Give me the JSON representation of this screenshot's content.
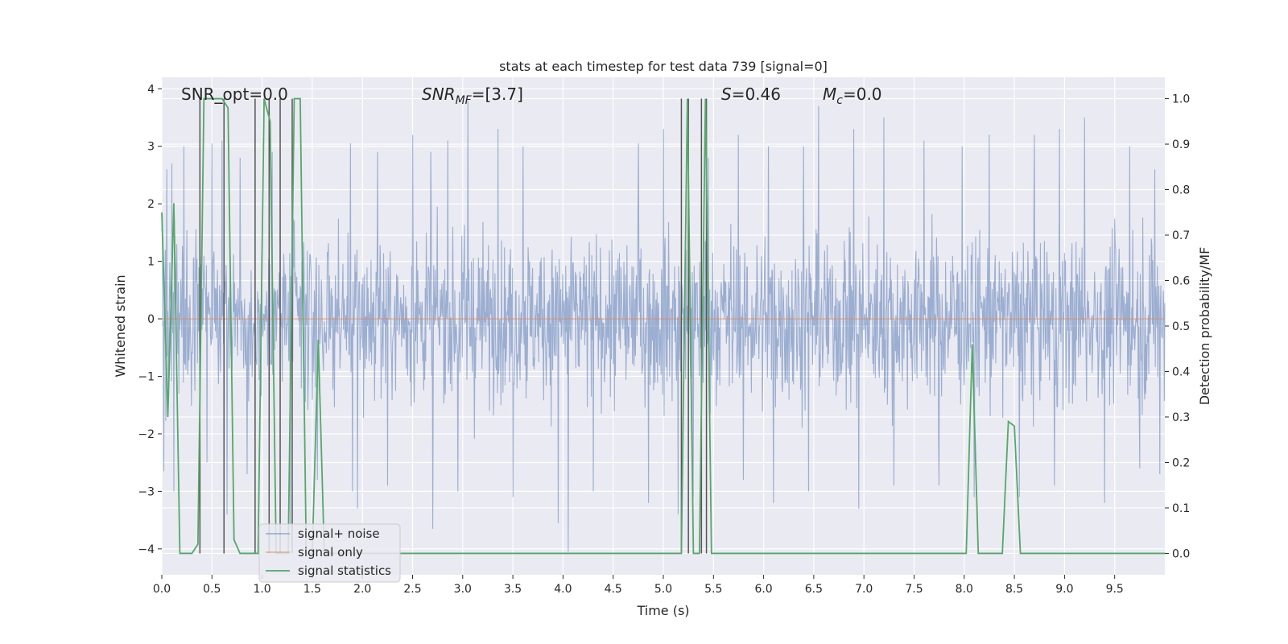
{
  "chart_data": {
    "type": "line",
    "title": "stats at each timestep for test data 739 [signal=0]",
    "xlabel": "Time (s)",
    "ylabel": "Whitened strain",
    "ylabel_right": "Detection probability/MF",
    "xlim": [
      0.0,
      10.0
    ],
    "ylim_left": [
      -4.45,
      4.2
    ],
    "ylim_right": [
      -0.047,
      1.047
    ],
    "x_ticks": [
      0.0,
      0.5,
      1.0,
      1.5,
      2.0,
      2.5,
      3.0,
      3.5,
      4.0,
      4.5,
      5.0,
      5.5,
      6.0,
      6.5,
      7.0,
      7.5,
      8.0,
      8.5,
      9.0,
      9.5
    ],
    "x_tick_labels": [
      "0.0",
      "0.5",
      "1.0",
      "1.5",
      "2.0",
      "2.5",
      "3.0",
      "3.5",
      "4.0",
      "4.5",
      "5.0",
      "5.5",
      "6.0",
      "6.5",
      "7.0",
      "7.5",
      "8.0",
      "8.5",
      "9.0",
      "9.5"
    ],
    "y_ticks_left": [
      -4,
      -3,
      -2,
      -1,
      0,
      1,
      2,
      3,
      4
    ],
    "y_tick_labels_left": [
      "−4",
      "−3",
      "−2",
      "−1",
      "0",
      "1",
      "2",
      "3",
      "4"
    ],
    "y_ticks_right": [
      0.0,
      0.1,
      0.2,
      0.3,
      0.4,
      0.5,
      0.6,
      0.7,
      0.8,
      0.9,
      1.0
    ],
    "y_tick_labels_right": [
      "0.0",
      "0.1",
      "0.2",
      "0.3",
      "0.4",
      "0.5",
      "0.6",
      "0.7",
      "0.8",
      "0.9",
      "1.0"
    ],
    "grid": true,
    "legend_position": "lower-left",
    "annotations": [
      {
        "id": "snr-opt",
        "text": "SNR_opt=0.0",
        "x": 0.19,
        "y": 3.95
      },
      {
        "id": "snr-mf",
        "text": "SNR_MF=[3.7]",
        "parts": [
          "SNR",
          "MF",
          "=[3.7]"
        ],
        "x": 2.6,
        "y": 3.95
      },
      {
        "id": "s-stat",
        "text": "S=0.46",
        "parts": [
          "S",
          "=0.46"
        ],
        "x": 5.6,
        "y": 3.95
      },
      {
        "id": "mc",
        "text": "M_c=0.0",
        "parts": [
          "M",
          "c",
          "=0.0"
        ],
        "x": 6.6,
        "y": 3.95
      }
    ],
    "series": [
      {
        "name": "signal+ noise",
        "color": "#4c72b0",
        "axis": "left",
        "style": "noise-band",
        "n_samples": 2000,
        "seed": 739,
        "envelope_sigma": 1.0,
        "spike_up": [
          [
            0.05,
            2.6
          ],
          [
            0.1,
            2.7
          ],
          [
            0.22,
            3.0
          ],
          [
            0.5,
            3.05
          ],
          [
            0.6,
            3.1
          ],
          [
            0.78,
            2.8
          ],
          [
            1.1,
            2.9
          ],
          [
            1.28,
            3.2
          ],
          [
            1.55,
            2.9
          ],
          [
            1.88,
            3.05
          ],
          [
            2.15,
            2.9
          ],
          [
            2.5,
            3.2
          ],
          [
            2.68,
            2.9
          ],
          [
            2.85,
            3.1
          ],
          [
            3.05,
            3.8
          ],
          [
            3.35,
            3.3
          ],
          [
            3.6,
            3.0
          ],
          [
            3.95,
            3.0
          ],
          [
            4.3,
            3.2
          ],
          [
            4.75,
            3.05
          ],
          [
            5.0,
            3.3
          ],
          [
            5.45,
            2.8
          ],
          [
            5.75,
            3.2
          ],
          [
            6.05,
            3.0
          ],
          [
            6.4,
            3.0
          ],
          [
            6.55,
            3.7
          ],
          [
            6.9,
            3.3
          ],
          [
            7.2,
            3.5
          ],
          [
            7.6,
            3.1
          ],
          [
            7.98,
            3.0
          ],
          [
            8.25,
            3.2
          ],
          [
            8.7,
            3.2
          ],
          [
            8.95,
            3.3
          ],
          [
            9.2,
            3.5
          ],
          [
            9.65,
            3.0
          ],
          [
            9.9,
            2.6
          ]
        ],
        "spike_down": [
          [
            0.02,
            -2.65
          ],
          [
            0.12,
            -3.0
          ],
          [
            0.45,
            -2.5
          ],
          [
            0.65,
            -3.4
          ],
          [
            0.85,
            -2.7
          ],
          [
            1.28,
            -3.6
          ],
          [
            1.55,
            -2.8
          ],
          [
            1.9,
            -3.0
          ],
          [
            1.95,
            -3.3
          ],
          [
            2.25,
            -2.9
          ],
          [
            2.7,
            -3.65
          ],
          [
            2.95,
            -3.0
          ],
          [
            3.5,
            -3.1
          ],
          [
            3.95,
            -3.55
          ],
          [
            4.05,
            -4.05
          ],
          [
            4.3,
            -3.0
          ],
          [
            4.85,
            -3.2
          ],
          [
            5.15,
            -3.4
          ],
          [
            5.3,
            -3.1
          ],
          [
            5.8,
            -2.8
          ],
          [
            6.1,
            -3.2
          ],
          [
            6.45,
            -3.0
          ],
          [
            6.95,
            -3.3
          ],
          [
            7.3,
            -2.9
          ],
          [
            7.75,
            -2.9
          ],
          [
            8.1,
            -3.1
          ],
          [
            8.55,
            -3.1
          ],
          [
            8.9,
            -2.9
          ],
          [
            9.4,
            -3.2
          ],
          [
            9.75,
            -2.6
          ],
          [
            9.95,
            -2.7
          ]
        ]
      },
      {
        "name": "signal only",
        "color": "#dd8452",
        "axis": "left",
        "x": [
          0.0,
          10.0
        ],
        "y": [
          0.0,
          0.0
        ]
      },
      {
        "name": "signal statistics",
        "color": "#55a868",
        "axis": "right",
        "x": [
          0.0,
          0.06,
          0.12,
          0.18,
          0.24,
          0.3,
          0.36,
          0.42,
          0.48,
          0.54,
          0.6,
          0.66,
          0.72,
          0.78,
          0.84,
          0.9,
          0.96,
          1.02,
          1.08,
          1.14,
          1.2,
          1.26,
          1.32,
          1.38,
          1.44,
          1.5,
          1.56,
          1.62,
          1.68,
          5.12,
          5.18,
          5.24,
          5.3,
          5.36,
          5.42,
          5.48,
          7.96,
          8.02,
          8.08,
          8.14,
          8.2,
          8.26,
          8.32,
          8.38,
          8.44,
          8.5,
          8.56,
          10.0
        ],
        "y": [
          0.75,
          0.3,
          0.77,
          0.0,
          0.0,
          0.0,
          0.02,
          1.0,
          1.0,
          1.0,
          1.0,
          0.98,
          0.03,
          0.0,
          0.0,
          0.0,
          0.0,
          1.0,
          0.95,
          0.0,
          0.0,
          0.0,
          1.0,
          1.0,
          0.0,
          0.0,
          0.47,
          0.0,
          0.0,
          0.0,
          0.0,
          1.0,
          0.0,
          0.0,
          1.0,
          0.0,
          0.0,
          0.0,
          0.46,
          0.0,
          0.0,
          0.0,
          0.0,
          0.0,
          0.29,
          0.28,
          0.0,
          0.0
        ]
      }
    ],
    "markers": {
      "color": "#555555",
      "axis": "right",
      "x": [
        0.38,
        0.62,
        0.93,
        1.07,
        1.18,
        1.3,
        5.18,
        5.25,
        5.38,
        5.43
      ],
      "y_range": [
        0.0,
        1.0
      ]
    }
  }
}
